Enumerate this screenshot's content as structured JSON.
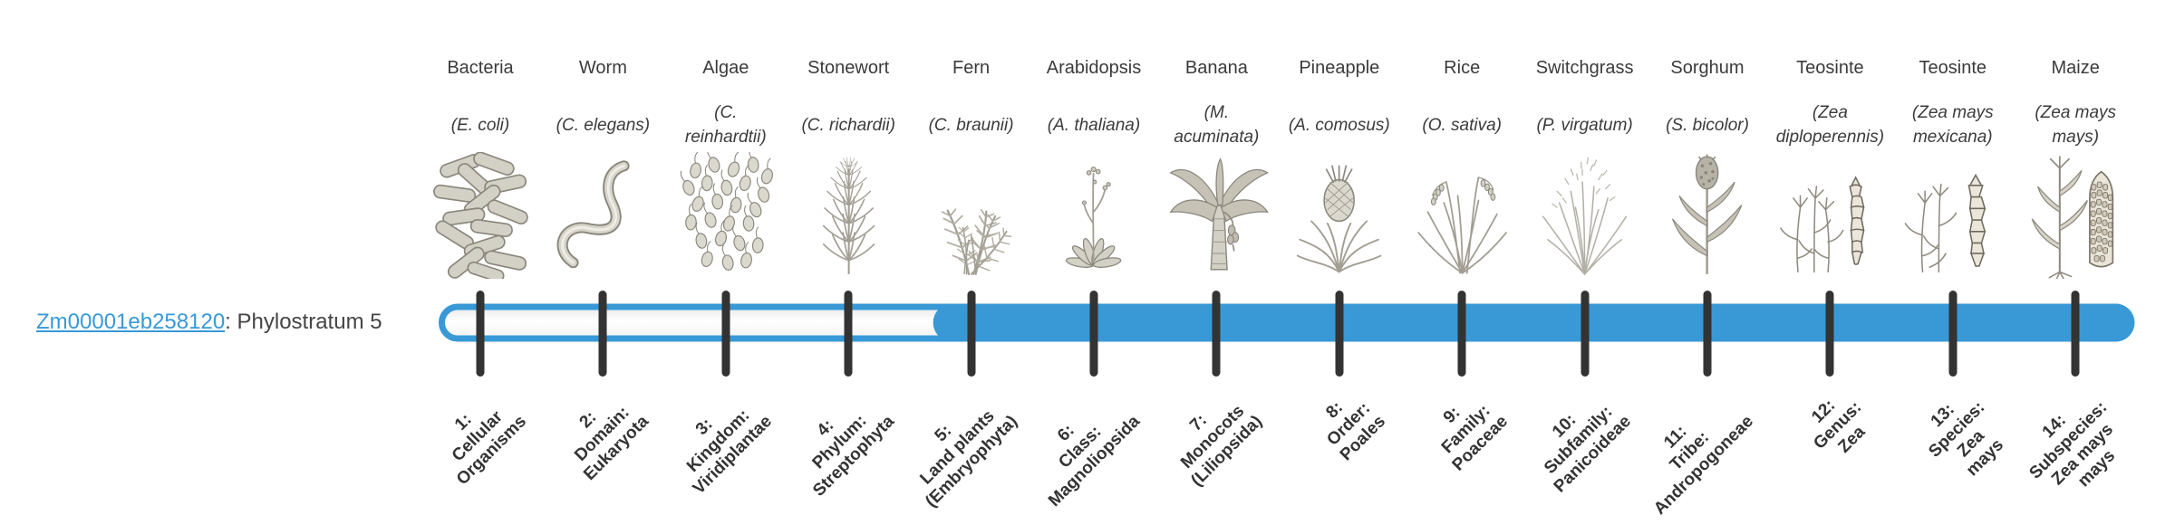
{
  "gene": {
    "link_text": "Zm00001eb258120",
    "suffix": ": Phylostratum 5",
    "phylostratum": 5
  },
  "colors": {
    "accent_blue": "#3899d6",
    "tick_dark": "#333333",
    "track_white": "#ffffff"
  },
  "timeline": {
    "highlight_start_stratum": 5,
    "strata": [
      {
        "num": 1,
        "organism": "Bacteria",
        "scientific": "(E. coli)",
        "icon": "bacteria-icon",
        "stratum_label": "1:\nCellular\nOrganisms"
      },
      {
        "num": 2,
        "organism": "Worm",
        "scientific": "(C. elegans)",
        "icon": "worm-icon",
        "stratum_label": "2:\nDomain:\nEukaryota"
      },
      {
        "num": 3,
        "organism": "Algae",
        "scientific": "(C. reinhardtii)",
        "icon": "algae-icon",
        "stratum_label": "3:\nKingdom:\nViridiplantae"
      },
      {
        "num": 4,
        "organism": "Stonewort",
        "scientific": "(C. richardii)",
        "icon": "stonewort-icon",
        "stratum_label": "4:\nPhylum:\nStreptophyta"
      },
      {
        "num": 5,
        "organism": "Fern",
        "scientific": "(C. braunii)",
        "icon": "fern-icon",
        "stratum_label": "5:\nLand plants\n(Embryophyta)"
      },
      {
        "num": 6,
        "organism": "Arabidopsis",
        "scientific": "(A. thaliana)",
        "icon": "arabidopsis-icon",
        "stratum_label": "6:\nClass:\nMagnoliopsida"
      },
      {
        "num": 7,
        "organism": "Banana",
        "scientific": "(M. acuminata)",
        "icon": "banana-icon",
        "stratum_label": "7:\nMonocots\n(Liliopsida)"
      },
      {
        "num": 8,
        "organism": "Pineapple",
        "scientific": "(A. comosus)",
        "icon": "pineapple-icon",
        "stratum_label": "8:\nOrder:\nPoales"
      },
      {
        "num": 9,
        "organism": "Rice",
        "scientific": "(O. sativa)",
        "icon": "rice-icon",
        "stratum_label": "9:\nFamily:\nPoaceae"
      },
      {
        "num": 10,
        "organism": "Switchgrass",
        "scientific": "(P. virgatum)",
        "icon": "switchgrass-icon",
        "stratum_label": "10:\nSubfamily:\nPanicoideae"
      },
      {
        "num": 11,
        "organism": "Sorghum",
        "scientific": "(S. bicolor)",
        "icon": "sorghum-icon",
        "stratum_label": "11:\nTribe:\nAndropogoneae"
      },
      {
        "num": 12,
        "organism": "Teosinte",
        "scientific": "(Zea diploperennis)",
        "icon": "teosinte-diploperennis-icon",
        "stratum_label": "12:\nGenus:\nZea"
      },
      {
        "num": 13,
        "organism": "Teosinte",
        "scientific": "(Zea mays mexicana)",
        "icon": "teosinte-mexicana-icon",
        "stratum_label": "13:\nSpecies:\nZea\nmays"
      },
      {
        "num": 14,
        "organism": "Maize",
        "scientific": "(Zea mays mays)",
        "icon": "maize-icon",
        "stratum_label": "14:\nSubspecies:\nZea mays\nmays"
      }
    ]
  }
}
